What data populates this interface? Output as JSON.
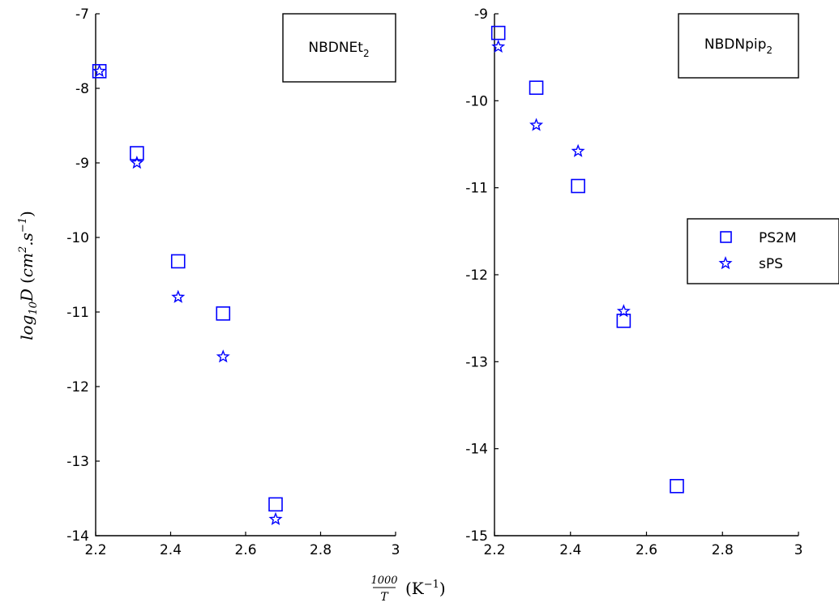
{
  "chart_data": [
    {
      "type": "scatter",
      "annotation": {
        "base": "NBDNEt",
        "sub": "2"
      },
      "xlim": [
        2.2,
        3.0
      ],
      "ylim": [
        -14,
        -7
      ],
      "xticks": [
        "2.2",
        "2.4",
        "2.6",
        "2.8",
        "3"
      ],
      "yticks": [
        "-7",
        "-8",
        "-9",
        "-10",
        "-11",
        "-12",
        "-13",
        "-14"
      ],
      "series": [
        {
          "name": "PS2M",
          "marker": "square",
          "color": "#0000ff",
          "x": [
            2.21,
            2.31,
            2.42,
            2.54,
            2.68
          ],
          "y": [
            -7.77,
            -8.87,
            -10.32,
            -11.02,
            -13.58
          ]
        },
        {
          "name": "sPS",
          "marker": "star",
          "color": "#0000ff",
          "x": [
            2.21,
            2.31,
            2.42,
            2.54,
            2.68
          ],
          "y": [
            -7.77,
            -9.0,
            -10.8,
            -11.6,
            -13.78
          ]
        }
      ]
    },
    {
      "type": "scatter",
      "annotation": {
        "base": "NBDNpip",
        "sub": "2"
      },
      "xlim": [
        2.2,
        3.0
      ],
      "ylim": [
        -15,
        -9
      ],
      "xticks": [
        "2.2",
        "2.4",
        "2.6",
        "2.8",
        "3"
      ],
      "yticks": [
        "-9",
        "-10",
        "-11",
        "-12",
        "-13",
        "-14",
        "-15"
      ],
      "legend": {
        "placement": "right",
        "entries": [
          "PS2M",
          "sPS"
        ]
      },
      "series": [
        {
          "name": "PS2M",
          "marker": "square",
          "color": "#0000ff",
          "x": [
            2.21,
            2.31,
            2.42,
            2.54,
            2.68
          ],
          "y": [
            -9.22,
            -9.85,
            -10.98,
            -12.53,
            -14.43
          ]
        },
        {
          "name": "sPS",
          "marker": "star",
          "color": "#0000ff",
          "x": [
            2.21,
            2.31,
            2.42,
            2.54,
            2.68
          ],
          "y": [
            -9.38,
            -10.28,
            -10.58,
            -12.42,
            null
          ]
        }
      ]
    }
  ],
  "ylabel": {
    "prefix": "log",
    "sub": "10",
    "var": "D",
    "open": "(",
    "unit": "cm",
    "sup1": "2",
    "dot": ".s",
    "sup2": "−1",
    "close": ")"
  },
  "xlabel": {
    "num": "1000",
    "den": "T",
    "unit": "(K",
    "sup": "−1",
    "close": ")"
  }
}
